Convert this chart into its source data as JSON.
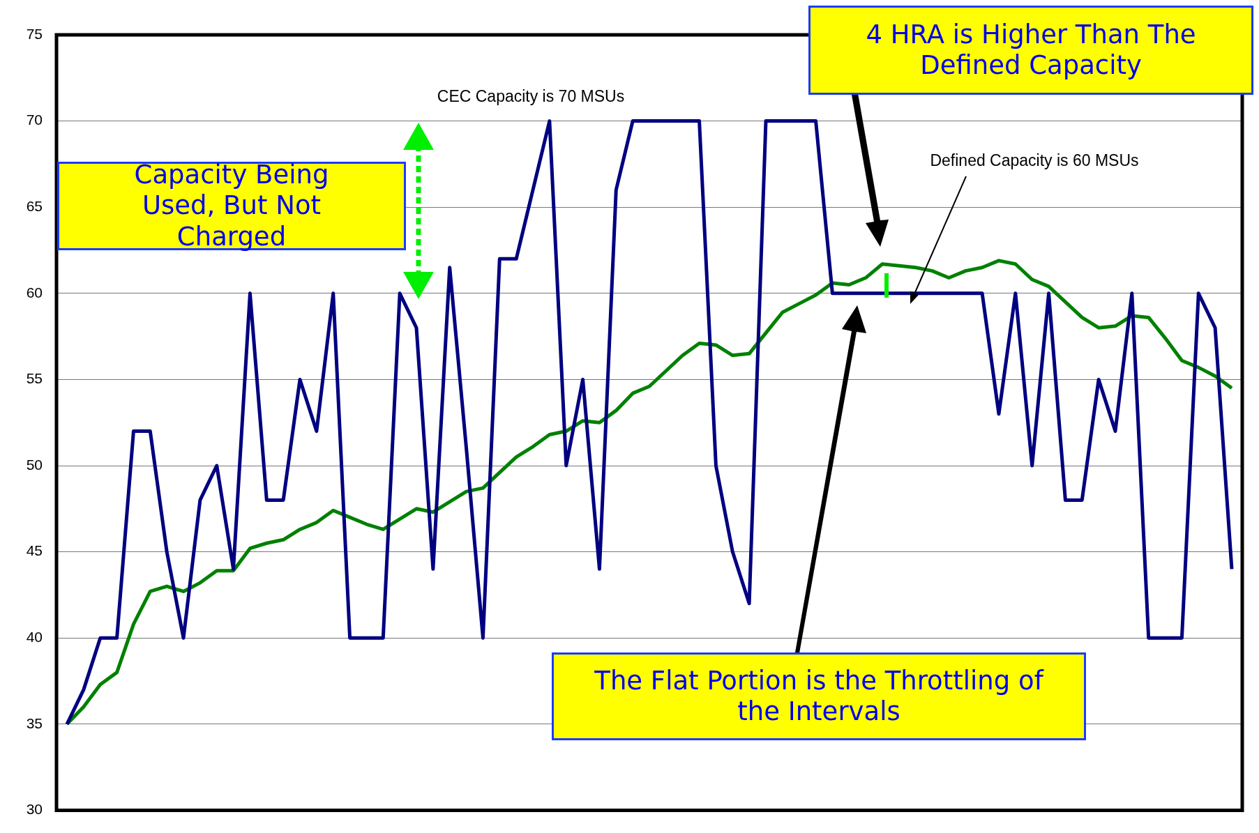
{
  "chart_data": {
    "type": "line",
    "categories": [
      null,
      null,
      null,
      null,
      null,
      null,
      null,
      null,
      null,
      null,
      null,
      null,
      null,
      null,
      null,
      null,
      null,
      null,
      null,
      null,
      null,
      null,
      null,
      null,
      null,
      null,
      null,
      null,
      null,
      null,
      null,
      null,
      null,
      null,
      null,
      null,
      null,
      null,
      null,
      null,
      null,
      null,
      null,
      null,
      null,
      null,
      null,
      null,
      null,
      null,
      null,
      null,
      null,
      null,
      null,
      null,
      null,
      null,
      null,
      null,
      null,
      null,
      null,
      null,
      null,
      null,
      null,
      null,
      null,
      null,
      null
    ],
    "series": [
      {
        "color": "#000080",
        "values": [
          35,
          37,
          40,
          40,
          52,
          52,
          45,
          40,
          48,
          50,
          44,
          60,
          48,
          48,
          55,
          52,
          60,
          40,
          40,
          40,
          60,
          58,
          44,
          61.5,
          51,
          40,
          62,
          62,
          66,
          70,
          50,
          55,
          44,
          66,
          70,
          70,
          70,
          70,
          70,
          50,
          45,
          42,
          70,
          70,
          70,
          70,
          60,
          60,
          60,
          60,
          60,
          60,
          60,
          60,
          60,
          60,
          53,
          60,
          50,
          60,
          48,
          48,
          55,
          52,
          60,
          40,
          40,
          40,
          60,
          58,
          44
        ]
      },
      {
        "color": "#008000",
        "values": [
          35,
          36,
          37.3,
          38,
          40.8,
          42.7,
          43,
          42.7,
          43.2,
          43.9,
          43.9,
          45.2,
          45.5,
          45.7,
          46.3,
          46.7,
          47.4,
          47,
          46.6,
          46.3,
          46.9,
          47.5,
          47.3,
          47.9,
          48.5,
          48.7,
          49.6,
          50.5,
          51.1,
          51.8,
          52,
          52.6,
          52.5,
          53.2,
          54.2,
          54.6,
          55.5,
          56.4,
          57.1,
          57,
          56.4,
          56.5,
          57.7,
          58.9,
          59.4,
          59.9,
          60.6,
          60.5,
          60.9,
          61.7,
          61.6,
          61.5,
          61.3,
          60.9,
          61.3,
          61.5,
          61.9,
          61.7,
          60.8,
          60.4,
          59.5,
          58.6,
          58,
          58.1,
          58.7,
          58.6,
          57.4,
          56.1,
          55.7,
          55.2,
          54.5
        ]
      }
    ],
    "ylim": [
      30,
      75
    ],
    "yticks": [
      30,
      35,
      40,
      45,
      50,
      55,
      60,
      65,
      70,
      75
    ],
    "grid": "y",
    "tick_labels": "y",
    "legend": false,
    "marker": "none",
    "line_style": "solid",
    "annotations": [
      "CEC Capacity is 70 MSUs",
      "Defined Capacity is 60 MSUs",
      "4 HRA is Higher Than The Defined Capacity",
      "Capacity Being Used, But Not Charged",
      "The Flat Portion is the Throttling of the Intervals"
    ]
  }
}
